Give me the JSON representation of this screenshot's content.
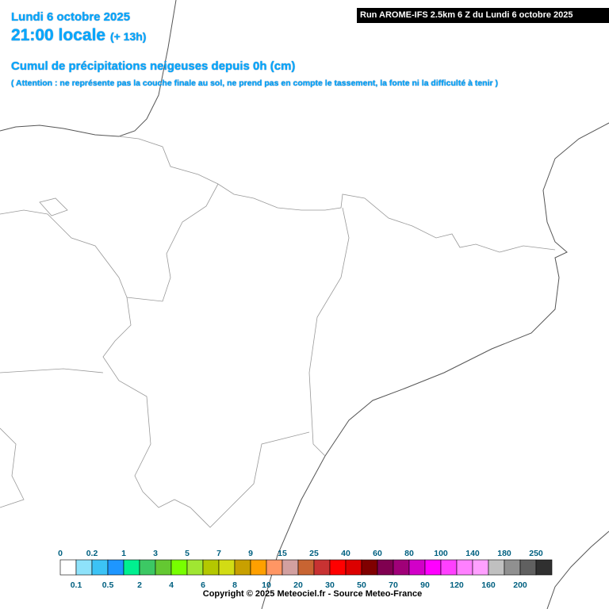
{
  "header": {
    "date": "Lundi 6 octobre 2025",
    "time": "21:00 locale",
    "lead": "(+ 13h)",
    "run": "Run AROME-IFS 2.5km 6 Z du Lundi 6 octobre 2025",
    "title": "Cumul de précipitations neigeuses depuis 0h (cm)",
    "note": "( Attention : ne représente pas la couche finale au sol, ne prend pas en compte le tassement, la fonte ni la difficulté à tenir )"
  },
  "legend": {
    "labels": [
      0,
      0.1,
      0.2,
      0.5,
      1,
      2,
      3,
      4,
      5,
      6,
      7,
      8,
      9,
      10,
      15,
      20,
      25,
      30,
      40,
      50,
      60,
      70,
      80,
      90,
      100,
      120,
      140,
      160,
      180,
      200,
      250
    ],
    "colors": [
      "#ffffff",
      "#8ee2fa",
      "#3cc3f5",
      "#1e96ff",
      "#00f090",
      "#3cc864",
      "#64c832",
      "#78ff00",
      "#a0e632",
      "#b4c800",
      "#d2dc14",
      "#c8a000",
      "#ffa000",
      "#ff9664",
      "#d2a0a0",
      "#c86432",
      "#c83232",
      "#ff0000",
      "#dc0000",
      "#800000",
      "#800050",
      "#a00078",
      "#d200c8",
      "#ff00ff",
      "#ff40ff",
      "#ff80ff",
      "#ffa0ff",
      "#c0c0c0",
      "#909090",
      "#606060",
      "#303030"
    ]
  },
  "footer": {
    "copyright": "Copyright © 2025 Meteociel.fr - Source Meteo-France"
  }
}
